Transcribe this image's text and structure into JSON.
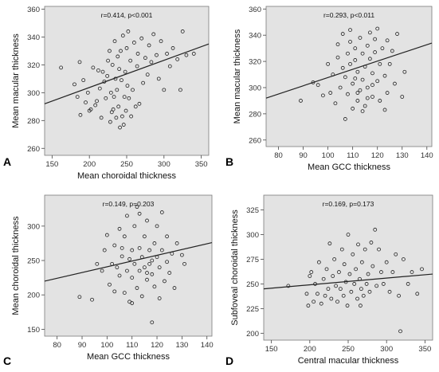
{
  "colors": {
    "plot_background": "#e3e3e3",
    "marker_stroke": "#222222",
    "fit_line": "#222222"
  },
  "chart_data": [
    {
      "type": "scatter",
      "panel": "A",
      "title": "",
      "xlabel": "Mean choroidal thickness",
      "ylabel": "Mean macular thickness",
      "annotation": "r=0.414,  p<0.001",
      "xlim": [
        140,
        360
      ],
      "ylim": [
        255,
        362
      ],
      "xticks": [
        150,
        200,
        250,
        300,
        350
      ],
      "yticks": [
        260,
        280,
        300,
        320,
        340,
        360
      ],
      "xtick_labels": [
        "150",
        "200",
        "250",
        "300",
        "350"
      ],
      "ytick_labels": [
        "260",
        "280",
        "300",
        "320",
        "340",
        "360"
      ],
      "fit_line": {
        "x": [
          140,
          360
        ],
        "y": [
          292,
          335
        ]
      },
      "grid": false,
      "legend": "none",
      "points": [
        [
          162,
          318
        ],
        [
          180,
          306
        ],
        [
          184,
          297
        ],
        [
          187,
          322
        ],
        [
          188,
          284
        ],
        [
          192,
          309
        ],
        [
          195,
          293
        ],
        [
          198,
          300
        ],
        [
          200,
          287
        ],
        [
          202,
          288
        ],
        [
          205,
          318
        ],
        [
          208,
          291
        ],
        [
          210,
          294
        ],
        [
          212,
          316
        ],
        [
          214,
          303
        ],
        [
          216,
          282
        ],
        [
          218,
          315
        ],
        [
          220,
          308
        ],
        [
          222,
          296
        ],
        [
          224,
          312
        ],
        [
          225,
          323
        ],
        [
          227,
          330
        ],
        [
          228,
          279
        ],
        [
          229,
          300
        ],
        [
          230,
          286
        ],
        [
          231,
          320
        ],
        [
          232,
          288
        ],
        [
          233,
          297
        ],
        [
          234,
          337
        ],
        [
          235,
          310
        ],
        [
          236,
          282
        ],
        [
          237,
          302
        ],
        [
          238,
          326
        ],
        [
          239,
          290
        ],
        [
          240,
          317
        ],
        [
          241,
          275
        ],
        [
          242,
          330
        ],
        [
          243,
          309
        ],
        [
          244,
          283
        ],
        [
          245,
          341
        ],
        [
          246,
          277
        ],
        [
          247,
          297
        ],
        [
          248,
          315
        ],
        [
          249,
          287
        ],
        [
          250,
          332
        ],
        [
          251,
          305
        ],
        [
          252,
          344
        ],
        [
          253,
          296
        ],
        [
          255,
          323
        ],
        [
          256,
          283
        ],
        [
          258,
          302
        ],
        [
          260,
          336
        ],
        [
          262,
          290
        ],
        [
          264,
          319
        ],
        [
          265,
          328
        ],
        [
          267,
          292
        ],
        [
          270,
          339
        ],
        [
          272,
          307
        ],
        [
          275,
          325
        ],
        [
          278,
          313
        ],
        [
          280,
          334
        ],
        [
          283,
          322
        ],
        [
          286,
          342
        ],
        [
          290,
          327
        ],
        [
          293,
          310
        ],
        [
          296,
          337
        ],
        [
          300,
          302
        ],
        [
          304,
          328
        ],
        [
          308,
          319
        ],
        [
          312,
          332
        ],
        [
          318,
          324
        ],
        [
          322,
          302
        ],
        [
          325,
          344
        ],
        [
          330,
          327
        ],
        [
          340,
          328
        ]
      ]
    },
    {
      "type": "scatter",
      "panel": "B",
      "title": "",
      "xlabel": "Mean GCC thickness",
      "ylabel": "Mean macular thickness",
      "annotation": "r=0.293,  p<0.011",
      "xlim": [
        75,
        142
      ],
      "ylim": [
        255,
        362
      ],
      "xticks": [
        80,
        90,
        100,
        110,
        120,
        130,
        140
      ],
      "yticks": [
        260,
        280,
        300,
        320,
        340,
        360
      ],
      "xtick_labels": [
        "80",
        "90",
        "100",
        "110",
        "120",
        "130",
        "140"
      ],
      "ytick_labels": [
        "260",
        "280",
        "300",
        "320",
        "340",
        "360"
      ],
      "fit_line": {
        "x": [
          75,
          142
        ],
        "y": [
          292,
          334
        ]
      },
      "grid": false,
      "legend": "none",
      "points": [
        [
          89,
          290
        ],
        [
          94,
          304
        ],
        [
          96,
          302
        ],
        [
          98,
          294
        ],
        [
          100,
          318
        ],
        [
          101,
          296
        ],
        [
          102,
          310
        ],
        [
          103,
          288
        ],
        [
          104,
          323
        ],
        [
          104,
          333
        ],
        [
          105,
          300
        ],
        [
          106,
          315
        ],
        [
          106,
          341
        ],
        [
          107,
          276
        ],
        [
          107,
          308
        ],
        [
          108,
          326
        ],
        [
          108,
          295
        ],
        [
          109,
          335
        ],
        [
          109,
          318
        ],
        [
          110,
          284
        ],
        [
          110,
          303
        ],
        [
          111,
          321
        ],
        [
          111,
          330
        ],
        [
          112,
          290
        ],
        [
          112,
          312
        ],
        [
          113,
          338
        ],
        [
          113,
          298
        ],
        [
          114,
          326
        ],
        [
          114,
          306
        ],
        [
          115,
          316
        ],
        [
          115,
          286
        ],
        [
          116,
          332
        ],
        [
          116,
          300
        ],
        [
          117,
          342
        ],
        [
          117,
          322
        ],
        [
          118,
          293
        ],
        [
          118,
          311
        ],
        [
          119,
          327
        ],
        [
          119,
          337
        ],
        [
          120,
          305
        ],
        [
          120,
          345
        ],
        [
          121,
          290
        ],
        [
          121,
          318
        ],
        [
          122,
          330
        ],
        [
          123,
          309
        ],
        [
          123,
          283
        ],
        [
          124,
          336
        ],
        [
          124,
          296
        ],
        [
          125,
          318
        ],
        [
          126,
          328
        ],
        [
          127,
          303
        ],
        [
          128,
          341
        ],
        [
          130,
          293
        ],
        [
          131,
          312
        ],
        [
          112,
          296
        ],
        [
          109,
          344
        ],
        [
          114,
          282
        ],
        [
          116,
          292
        ],
        [
          118,
          302
        ],
        [
          111,
          307
        ]
      ]
    },
    {
      "type": "scatter",
      "panel": "C",
      "title": "",
      "xlabel": "Mean GCC thickness",
      "ylabel": "Mean choroidal thickness",
      "annotation": "r=0.149,  p=0.203",
      "xlim": [
        75,
        142
      ],
      "ylim": [
        140,
        345
      ],
      "xticks": [
        80,
        90,
        100,
        110,
        120,
        130,
        140
      ],
      "yticks": [
        150,
        200,
        250,
        300
      ],
      "xtick_labels": [
        "80",
        "90",
        "100",
        "110",
        "120",
        "130",
        "140"
      ],
      "ytick_labels": [
        "150",
        "200",
        "250",
        "300"
      ],
      "fit_line": {
        "x": [
          75,
          142
        ],
        "y": [
          220,
          276
        ]
      },
      "grid": false,
      "legend": "none",
      "points": [
        [
          89,
          197
        ],
        [
          94,
          193
        ],
        [
          96,
          245
        ],
        [
          98,
          235
        ],
        [
          99,
          265
        ],
        [
          100,
          287
        ],
        [
          101,
          215
        ],
        [
          102,
          245
        ],
        [
          103,
          272
        ],
        [
          103,
          205
        ],
        [
          104,
          240
        ],
        [
          105,
          296
        ],
        [
          105,
          228
        ],
        [
          106,
          256
        ],
        [
          107,
          203
        ],
        [
          107,
          285
        ],
        [
          108,
          235
        ],
        [
          108,
          315
        ],
        [
          109,
          252
        ],
        [
          109,
          190
        ],
        [
          110,
          265
        ],
        [
          110,
          225
        ],
        [
          111,
          300
        ],
        [
          111,
          245
        ],
        [
          112,
          210
        ],
        [
          112,
          328
        ],
        [
          113,
          268
        ],
        [
          113,
          235
        ],
        [
          114,
          255
        ],
        [
          114,
          198
        ],
        [
          115,
          285
        ],
        [
          115,
          240
        ],
        [
          116,
          222
        ],
        [
          116,
          308
        ],
        [
          117,
          265
        ],
        [
          117,
          245
        ],
        [
          118,
          160
        ],
        [
          118,
          230
        ],
        [
          119,
          275
        ],
        [
          119,
          212
        ],
        [
          120,
          300
        ],
        [
          120,
          255
        ],
        [
          121,
          195
        ],
        [
          121,
          240
        ],
        [
          122,
          265
        ],
        [
          123,
          220
        ],
        [
          124,
          285
        ],
        [
          124,
          248
        ],
        [
          125,
          232
        ],
        [
          126,
          260
        ],
        [
          127,
          210
        ],
        [
          128,
          275
        ],
        [
          130,
          258
        ],
        [
          131,
          245
        ],
        [
          110,
          188
        ],
        [
          113,
          318
        ],
        [
          116,
          232
        ],
        [
          106,
          268
        ],
        [
          118,
          250
        ],
        [
          122,
          320
        ]
      ]
    },
    {
      "type": "scatter",
      "panel": "D",
      "title": "",
      "xlabel": "Central macular thickness",
      "ylabel": "Subfoveal choroidal thickness",
      "annotation": "r=0.169,  p=0.173",
      "xlim": [
        140,
        360
      ],
      "ylim": [
        193,
        340
      ],
      "xticks": [
        150,
        200,
        250,
        300,
        350
      ],
      "yticks": [
        200,
        225,
        250,
        275,
        300,
        325
      ],
      "xtick_labels": [
        "150",
        "200",
        "250",
        "300",
        "350"
      ],
      "ytick_labels": [
        "200",
        "225",
        "250",
        "275",
        "300",
        "325"
      ],
      "fit_line": {
        "x": [
          140,
          360
        ],
        "y": [
          245,
          260
        ]
      },
      "grid": false,
      "legend": "none",
      "points": [
        [
          172,
          248
        ],
        [
          196,
          240
        ],
        [
          198,
          228
        ],
        [
          200,
          258
        ],
        [
          202,
          262
        ],
        [
          205,
          232
        ],
        [
          207,
          250
        ],
        [
          210,
          240
        ],
        [
          212,
          272
        ],
        [
          215,
          230
        ],
        [
          218,
          255
        ],
        [
          220,
          238
        ],
        [
          222,
          265
        ],
        [
          224,
          245
        ],
        [
          226,
          291
        ],
        [
          228,
          235
        ],
        [
          230,
          258
        ],
        [
          232,
          275
        ],
        [
          234,
          248
        ],
        [
          236,
          232
        ],
        [
          238,
          262
        ],
        [
          240,
          245
        ],
        [
          242,
          285
        ],
        [
          244,
          238
        ],
        [
          245,
          270
        ],
        [
          247,
          252
        ],
        [
          249,
          228
        ],
        [
          250,
          300
        ],
        [
          252,
          260
        ],
        [
          254,
          242
        ],
        [
          256,
          280
        ],
        [
          258,
          250
        ],
        [
          260,
          265
        ],
        [
          262,
          235
        ],
        [
          263,
          290
        ],
        [
          265,
          255
        ],
        [
          267,
          245
        ],
        [
          268,
          272
        ],
        [
          270,
          238
        ],
        [
          272,
          285
        ],
        [
          274,
          250
        ],
        [
          276,
          260
        ],
        [
          278,
          242
        ],
        [
          280,
          292
        ],
        [
          282,
          268
        ],
        [
          285,
          305
        ],
        [
          287,
          248
        ],
        [
          290,
          285
        ],
        [
          293,
          262
        ],
        [
          296,
          250
        ],
        [
          300,
          272
        ],
        [
          304,
          242
        ],
        [
          308,
          262
        ],
        [
          312,
          280
        ],
        [
          316,
          238
        ],
        [
          318,
          202
        ],
        [
          322,
          275
        ],
        [
          328,
          250
        ],
        [
          333,
          262
        ],
        [
          340,
          240
        ],
        [
          346,
          265
        ],
        [
          266,
          228
        ]
      ]
    }
  ]
}
